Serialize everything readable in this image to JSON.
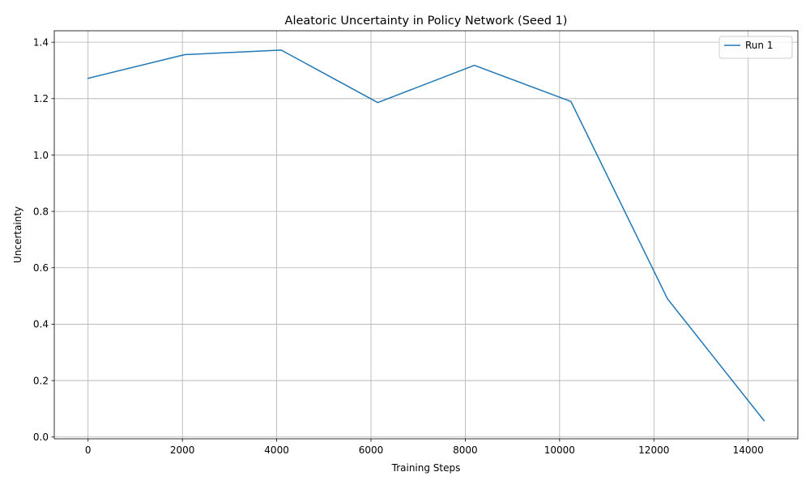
{
  "chart_data": {
    "type": "line",
    "title": "Aleatoric Uncertainty in Policy Network (Seed 1)",
    "xlabel": "Training Steps",
    "ylabel": "Uncertainty",
    "xlim": [
      -717,
      15053
    ],
    "ylim": [
      -0.0065,
      1.4406
    ],
    "x_ticks": [
      0,
      2000,
      4000,
      6000,
      8000,
      10000,
      12000,
      14000
    ],
    "y_ticks": [
      0.0,
      0.2,
      0.4,
      0.6,
      0.8,
      1.0,
      1.2,
      1.4
    ],
    "grid": true,
    "legend_position": "top-right",
    "series": [
      {
        "name": "Run 1",
        "color": "#1f77b4",
        "x": [
          0,
          2048,
          4096,
          6144,
          8192,
          10240,
          12288,
          14336
        ],
        "y": [
          1.272,
          1.356,
          1.372,
          1.186,
          1.318,
          1.19,
          0.49,
          0.058
        ]
      }
    ]
  }
}
